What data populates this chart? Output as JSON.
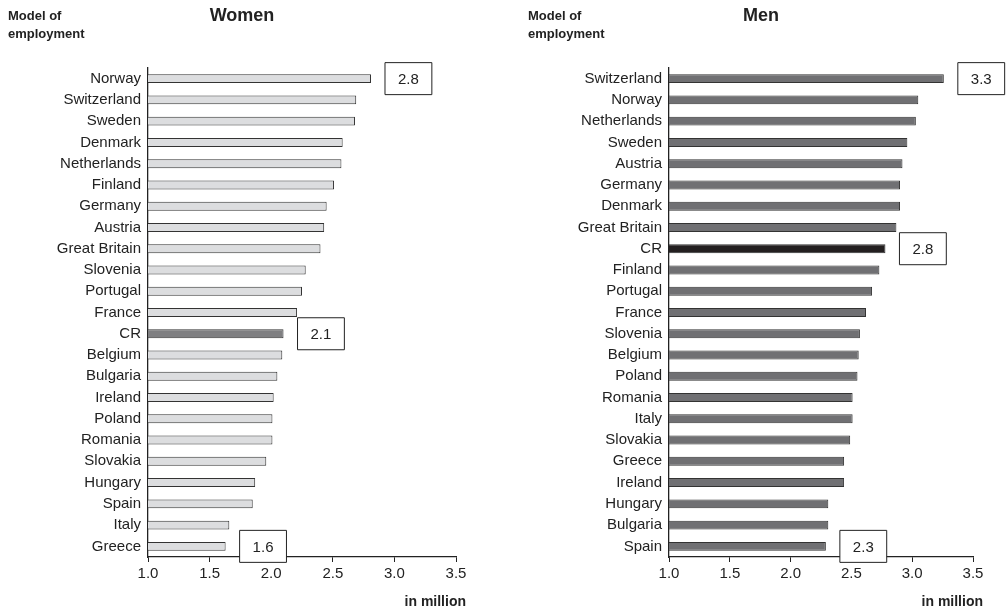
{
  "chart_data": [
    {
      "type": "bar",
      "orientation": "horizontal",
      "title": "Women",
      "ylabel": "Model of employment",
      "xlabel": "in million",
      "categories": [
        "Norway",
        "Switzerland",
        "Sweden",
        "Denmark",
        "Netherlands",
        "Finland",
        "Germany",
        "Austria",
        "Great Britain",
        "Slovenia",
        "Portugal",
        "France",
        "CR",
        "Belgium",
        "Bulgaria",
        "Ireland",
        "Poland",
        "Romania",
        "Slovakia",
        "Hungary",
        "Spain",
        "Italy",
        "Greece"
      ],
      "values": [
        2.81,
        2.69,
        2.68,
        2.58,
        2.57,
        2.51,
        2.45,
        2.43,
        2.4,
        2.28,
        2.25,
        2.21,
        2.1,
        2.09,
        2.05,
        2.02,
        2.01,
        2.01,
        1.96,
        1.87,
        1.85,
        1.66,
        1.63
      ],
      "colors": [
        "#dcdddf",
        "#dcdddf",
        "#dcdddf",
        "#dcdddf",
        "#dcdddf",
        "#dcdddf",
        "#dcdddf",
        "#dcdddf",
        "#dcdddf",
        "#dcdddf",
        "#dcdddf",
        "#dcdddf",
        "#7f7f81",
        "#dcdddf",
        "#dcdddf",
        "#dcdddf",
        "#dcdddf",
        "#dcdddf",
        "#dcdddf",
        "#dcdddf",
        "#dcdddf",
        "#dcdddf",
        "#dcdddf"
      ],
      "xlim": [
        1,
        3.5
      ],
      "xticks": [
        {
          "value": 1,
          "label": "1.0"
        },
        {
          "value": 1.5,
          "label": "1.5"
        },
        {
          "value": 2,
          "label": "2.0"
        },
        {
          "value": 2.5,
          "label": "2.5"
        },
        {
          "value": 3,
          "label": "3.0"
        },
        {
          "value": 3.5,
          "label": "3.5"
        }
      ],
      "grid": false,
      "annotations": [
        {
          "text": "2.8",
          "x": 2.81,
          "y": "Norway"
        },
        {
          "text": "2.1",
          "x": 2.1,
          "y": "CR"
        },
        {
          "text": "1.6",
          "x": 1.63,
          "y": "Greece"
        }
      ]
    },
    {
      "type": "bar",
      "orientation": "horizontal",
      "title": "Men",
      "ylabel": "Model of employment",
      "xlabel": "in million",
      "categories": [
        "Switzerland",
        "Norway",
        "Netherlands",
        "Sweden",
        "Austria",
        "Germany",
        "Denmark",
        "Great Britain",
        "CR",
        "Finland",
        "Portugal",
        "France",
        "Slovenia",
        "Belgium",
        "Poland",
        "Romania",
        "Italy",
        "Slovakia",
        "Greece",
        "Ireland",
        "Hungary",
        "Bulgaria",
        "Spain"
      ],
      "values": [
        3.26,
        3.05,
        3.03,
        2.96,
        2.92,
        2.9,
        2.9,
        2.87,
        2.78,
        2.73,
        2.67,
        2.62,
        2.57,
        2.56,
        2.55,
        2.51,
        2.51,
        2.49,
        2.44,
        2.44,
        2.31,
        2.31,
        2.29
      ],
      "colors": [
        "#707073",
        "#707073",
        "#707073",
        "#707073",
        "#707073",
        "#707073",
        "#707073",
        "#707073",
        "#231f20",
        "#707073",
        "#707073",
        "#707073",
        "#707073",
        "#707073",
        "#707073",
        "#707073",
        "#707073",
        "#707073",
        "#707073",
        "#707073",
        "#707073",
        "#707073",
        "#707073"
      ],
      "xlim": [
        1,
        3.5
      ],
      "xticks": [
        {
          "value": 1,
          "label": "1.0"
        },
        {
          "value": 1.5,
          "label": "1.5"
        },
        {
          "value": 2,
          "label": "2.0"
        },
        {
          "value": 2.5,
          "label": "2.5"
        },
        {
          "value": 3,
          "label": "3.0"
        },
        {
          "value": 3.5,
          "label": "3.5"
        }
      ],
      "grid": false,
      "annotations": [
        {
          "text": "3.3",
          "x": 3.26,
          "y": "Switzerland"
        },
        {
          "text": "2.8",
          "x": 2.78,
          "y": "CR"
        },
        {
          "text": "2.3",
          "x": 2.29,
          "y": "Spain"
        }
      ]
    }
  ]
}
